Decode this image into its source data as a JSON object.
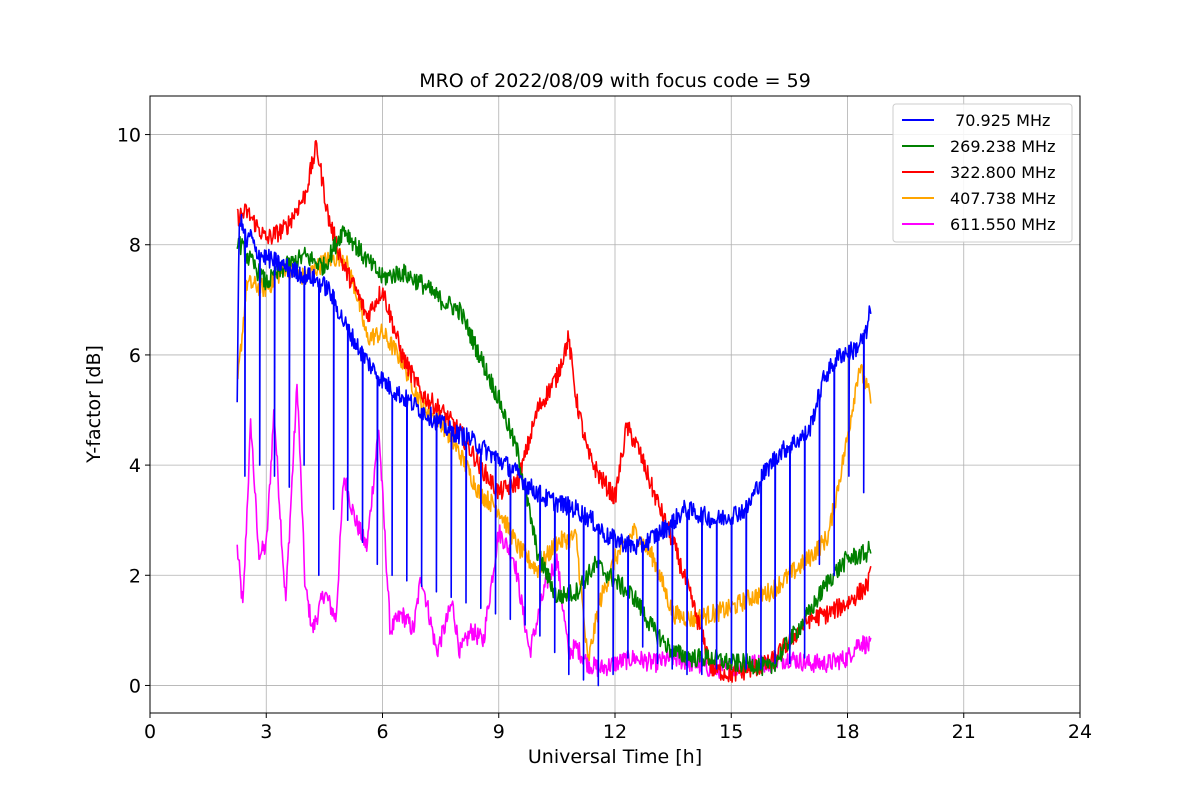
{
  "chart_data": {
    "type": "line",
    "title": "MRO of 2022/08/09 with focus code = 59",
    "xlabel": "Universal Time [h]",
    "ylabel": "Y-factor [dB]",
    "xlim": [
      0,
      24
    ],
    "ylim": [
      -0.5,
      10.7
    ],
    "xticks": [
      0,
      3,
      6,
      9,
      12,
      15,
      18,
      21,
      24
    ],
    "xtick_labels": [
      "0",
      "3",
      "6",
      "9",
      "12",
      "15",
      "18",
      "21",
      "24"
    ],
    "yticks": [
      0,
      2,
      4,
      6,
      8,
      10
    ],
    "ytick_labels": [
      "0",
      "2",
      "4",
      "6",
      "8",
      "10"
    ],
    "grid": true,
    "legend_position": "top-right",
    "series": [
      {
        "name": " 70.925 MHz",
        "color": "#0000ff",
        "x": [
          2.25,
          2.3,
          2.4,
          2.5,
          2.6,
          2.7,
          2.9,
          3.2,
          3.5,
          3.8,
          4.2,
          4.6,
          5.0,
          5.4,
          5.8,
          6.2,
          6.6,
          7.0,
          7.4,
          7.8,
          8.2,
          8.6,
          9.0,
          9.4,
          9.8,
          10.2,
          10.6,
          11.0,
          11.4,
          11.8,
          12.2,
          12.6,
          13.0,
          13.4,
          13.8,
          14.2,
          14.6,
          15.0,
          15.4,
          15.8,
          16.2,
          16.6,
          17.0,
          17.4,
          17.8,
          18.2,
          18.5,
          18.6
        ],
        "y": [
          5.0,
          8.5,
          8.3,
          8.0,
          8.2,
          7.9,
          7.8,
          7.7,
          7.6,
          7.5,
          7.4,
          7.2,
          6.6,
          6.1,
          5.7,
          5.4,
          5.2,
          5.0,
          4.8,
          4.6,
          4.5,
          4.3,
          4.1,
          3.9,
          3.6,
          3.4,
          3.3,
          3.2,
          3.0,
          2.7,
          2.6,
          2.5,
          2.7,
          2.9,
          3.2,
          3.1,
          3.0,
          3.1,
          3.2,
          3.8,
          4.2,
          4.4,
          4.6,
          5.6,
          6.0,
          6.1,
          6.4,
          6.9
        ],
        "dips_to": [
          3.8,
          4.0,
          3.8,
          3.6,
          4.0,
          2.0,
          3.2,
          3.0,
          2.6,
          2.2,
          2.0,
          1.9,
          1.8,
          1.7,
          1.6,
          1.5,
          1.4,
          1.3,
          1.2,
          1.1,
          0.9,
          0.6,
          0.2,
          0.1,
          0.0,
          0.2,
          0.5,
          0.7,
          0.4,
          0.3,
          0.2,
          0.2,
          0.3,
          0.4,
          0.3,
          0.3,
          0.4,
          0.4,
          0.5,
          2.2,
          2.0,
          3.8,
          3.5
        ]
      },
      {
        "name": "269.238 MHz",
        "color": "#008000",
        "x": [
          2.25,
          2.5,
          3.0,
          3.5,
          4.0,
          4.5,
          5.0,
          5.5,
          6.0,
          6.5,
          7.0,
          7.5,
          8.0,
          8.5,
          9.0,
          9.5,
          10.0,
          10.5,
          11.0,
          11.5,
          12.0,
          12.5,
          13.0,
          13.5,
          14.0,
          14.5,
          15.0,
          15.5,
          16.0,
          16.5,
          17.0,
          17.5,
          18.0,
          18.5,
          18.6
        ],
        "y": [
          8.1,
          7.8,
          7.3,
          7.6,
          7.8,
          7.6,
          8.3,
          7.8,
          7.4,
          7.5,
          7.3,
          7.0,
          6.8,
          6.0,
          5.2,
          4.2,
          2.4,
          1.6,
          1.7,
          2.2,
          1.9,
          1.6,
          1.0,
          0.6,
          0.5,
          0.5,
          0.4,
          0.4,
          0.3,
          0.8,
          1.3,
          1.9,
          2.3,
          2.4,
          2.5
        ]
      },
      {
        "name": "322.800 MHz",
        "color": "#ff0000",
        "x": [
          2.25,
          2.5,
          3.0,
          3.5,
          4.0,
          4.3,
          4.6,
          5.0,
          5.3,
          5.6,
          6.0,
          6.5,
          7.0,
          7.5,
          8.0,
          8.5,
          9.0,
          9.5,
          10.0,
          10.5,
          10.8,
          11.0,
          11.3,
          11.6,
          12.0,
          12.3,
          12.6,
          13.0,
          13.5,
          14.0,
          14.5,
          15.0,
          15.5,
          16.0,
          16.5,
          17.0,
          17.5,
          18.0,
          18.5,
          18.6
        ],
        "y": [
          8.5,
          8.6,
          8.1,
          8.3,
          8.9,
          9.8,
          8.5,
          7.6,
          7.2,
          6.7,
          7.2,
          6.0,
          5.3,
          5.0,
          4.6,
          4.0,
          3.5,
          3.7,
          5.0,
          5.6,
          6.3,
          5.2,
          4.2,
          3.8,
          3.4,
          4.7,
          4.3,
          3.5,
          2.6,
          1.5,
          0.3,
          0.2,
          0.3,
          0.4,
          0.8,
          1.2,
          1.3,
          1.5,
          1.8,
          2.0
        ]
      },
      {
        "name": "407.738 MHz",
        "color": "#ffa500",
        "x": [
          2.25,
          2.5,
          3.0,
          3.5,
          4.0,
          4.5,
          5.0,
          5.3,
          5.6,
          6.0,
          6.5,
          7.0,
          7.5,
          8.0,
          8.5,
          9.0,
          9.5,
          10.0,
          10.5,
          11.0,
          11.3,
          11.6,
          12.0,
          12.5,
          13.0,
          13.5,
          14.0,
          14.5,
          15.0,
          15.5,
          16.0,
          16.5,
          17.0,
          17.5,
          18.0,
          18.3,
          18.6
        ],
        "y": [
          5.4,
          7.3,
          7.2,
          7.6,
          7.4,
          7.7,
          7.8,
          7.2,
          6.3,
          6.4,
          5.9,
          5.1,
          4.8,
          4.2,
          3.5,
          3.2,
          2.5,
          2.1,
          2.6,
          2.7,
          0.4,
          1.5,
          2.3,
          2.8,
          2.3,
          1.3,
          1.2,
          1.3,
          1.4,
          1.6,
          1.7,
          2.0,
          2.3,
          2.7,
          4.5,
          5.8,
          5.2
        ]
      },
      {
        "name": "611.550 MHz",
        "color": "#ff00ff",
        "x": [
          2.25,
          2.4,
          2.6,
          2.8,
          3.0,
          3.2,
          3.5,
          3.8,
          4.0,
          4.2,
          4.5,
          4.8,
          5.0,
          5.3,
          5.6,
          5.9,
          6.2,
          6.5,
          6.8,
          7.0,
          7.4,
          7.8,
          8.0,
          8.3,
          8.6,
          9.0,
          9.4,
          9.8,
          10.2,
          10.5,
          10.8,
          11.0,
          11.3,
          11.6,
          12.0,
          12.5,
          13.0,
          13.5,
          14.0,
          14.5,
          15.0,
          15.5,
          16.0,
          16.5,
          17.0,
          17.5,
          18.0,
          18.3,
          18.6
        ],
        "y": [
          2.5,
          1.4,
          4.8,
          2.4,
          2.5,
          5.0,
          1.5,
          5.5,
          1.8,
          1.0,
          1.7,
          1.2,
          3.8,
          3.0,
          2.5,
          4.7,
          1.0,
          1.3,
          1.0,
          2.0,
          0.6,
          1.5,
          0.6,
          1.0,
          0.8,
          2.8,
          2.3,
          0.6,
          1.8,
          2.3,
          0.6,
          0.7,
          0.4,
          0.3,
          0.4,
          0.5,
          0.4,
          0.5,
          0.4,
          0.3,
          0.3,
          0.4,
          0.4,
          0.5,
          0.4,
          0.4,
          0.5,
          0.8,
          0.7
        ]
      }
    ]
  }
}
